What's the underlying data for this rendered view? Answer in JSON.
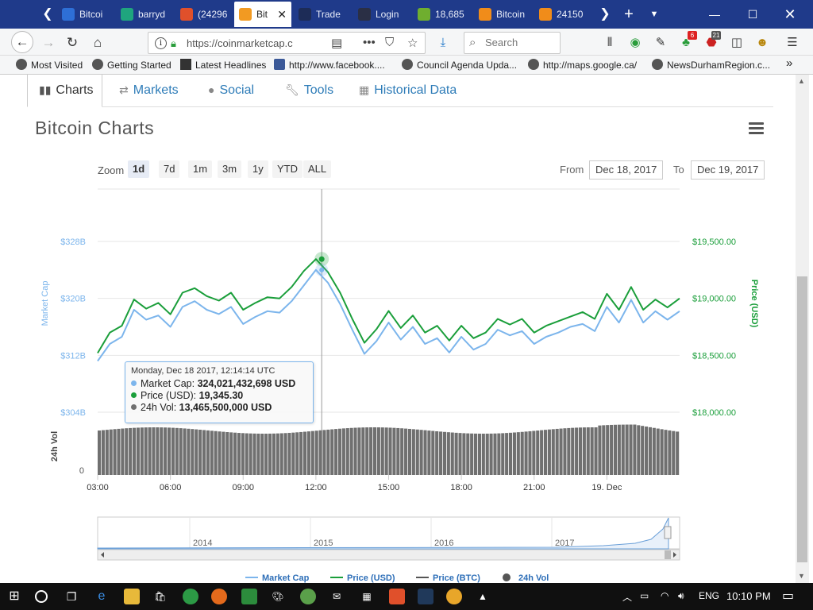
{
  "browser": {
    "tabs": [
      {
        "label": "Bitcoi",
        "icon": "bitcoin-tab-icon",
        "color": "#2e6fd6"
      },
      {
        "label": "barryd",
        "icon": "bookmark-tab-icon",
        "color": "#1fa57e"
      },
      {
        "label": "(24296",
        "icon": "mail-tab-icon",
        "color": "#e0502b"
      },
      {
        "label": "Bit",
        "icon": "bitcoin-tab-icon",
        "color": "#f29a22"
      },
      {
        "label": "Trade",
        "icon": "exchange-tab-icon",
        "color": "#1d2c57"
      },
      {
        "label": "Login",
        "icon": "lock-tab-icon",
        "color": "#2a2f45"
      },
      {
        "label": "18,685",
        "icon": "leaf-tab-icon",
        "color": "#6fae2f"
      },
      {
        "label": "Bitcoin",
        "icon": "chart-tab-icon",
        "color": "#f08c1a"
      },
      {
        "label": "24150",
        "icon": "chart-tab-icon",
        "color": "#f08c1a"
      }
    ],
    "url": "https://coinmarketcap.c",
    "search_placeholder": "Search",
    "badges": {
      "ext1": "6",
      "ext2": "21"
    },
    "bookmarks": [
      "Most Visited",
      "Getting Started",
      "Latest Headlines",
      "http://www.facebook....",
      "Council Agenda Upda...",
      "http://maps.google.ca/",
      "NewsDurhamRegion.c..."
    ]
  },
  "subnav": {
    "charts": "Charts",
    "markets": "Markets",
    "social": "Social",
    "tools": "Tools",
    "historical": "Historical Data"
  },
  "chart_title": "Bitcoin Charts",
  "controls": {
    "zoom_label": "Zoom",
    "zoom_options": [
      "1d",
      "7d",
      "1m",
      "3m",
      "1y",
      "YTD",
      "ALL"
    ],
    "selected": "1d",
    "from_label": "From",
    "from_value": "Dec 18, 2017",
    "to_label": "To",
    "to_value": "Dec 19, 2017"
  },
  "tooltip": {
    "date": "Monday, Dec 18 2017, 12:14:14 UTC",
    "market_cap_label": "Market Cap:",
    "market_cap_value": "324,021,432,698 USD",
    "price_label": "Price (USD):",
    "price_value": "19,345.30",
    "vol_label": "24h Vol:",
    "vol_value": "13,465,500,000 USD"
  },
  "colors": {
    "market_cap": "#7cb5ec",
    "price": "#1a9e3a",
    "volume": "#707070",
    "link": "#2e7cb8"
  },
  "chart_data": {
    "type": "line",
    "x_tick_labels": [
      "03:00",
      "06:00",
      "09:00",
      "12:00",
      "15:00",
      "18:00",
      "21:00",
      "19. Dec"
    ],
    "x_range_hours": [
      3,
      27
    ],
    "left_axis": {
      "label": "Market Cap",
      "ticks": [
        "$328B",
        "$320B",
        "$312B",
        "$304B"
      ],
      "range": [
        304,
        328
      ]
    },
    "right_axis": {
      "label": "Price (USD)",
      "ticks": [
        "$19,500.00",
        "$19,000.00",
        "$18,500.00",
        "$18,000.00"
      ],
      "range": [
        18000,
        19500
      ]
    },
    "volume_axis": {
      "label": "24h Vol",
      "ticks": [
        "0"
      ]
    },
    "series": [
      {
        "name": "Price (USD)",
        "x_hours": [
          3.0,
          3.5,
          4.0,
          4.5,
          5.0,
          5.5,
          6.0,
          6.5,
          7.0,
          7.5,
          8.0,
          8.5,
          9.0,
          9.5,
          10.0,
          10.5,
          11.0,
          11.5,
          12.0,
          12.5,
          13.0,
          13.5,
          14.0,
          14.5,
          15.0,
          15.5,
          16.0,
          16.5,
          17.0,
          17.5,
          18.0,
          18.5,
          19.0,
          19.5,
          20.0,
          20.5,
          21.0,
          21.5,
          22.0,
          22.5,
          23.0,
          23.5,
          24.0,
          24.5,
          25.0,
          25.5,
          26.0,
          26.5,
          27.0
        ],
        "values": [
          18520,
          18700,
          18760,
          18990,
          18910,
          18960,
          18860,
          19050,
          19090,
          19020,
          18980,
          19050,
          18900,
          18960,
          19010,
          19000,
          19100,
          19240,
          19345,
          19230,
          19050,
          18820,
          18610,
          18730,
          18890,
          18740,
          18850,
          18700,
          18760,
          18630,
          18760,
          18650,
          18700,
          18820,
          18770,
          18820,
          18700,
          18760,
          18800,
          18840,
          18880,
          18820,
          19040,
          18900,
          19100,
          18900,
          18990,
          18920,
          19000
        ]
      },
      {
        "name": "Market Cap",
        "x_hours": [
          3.0,
          3.5,
          4.0,
          4.5,
          5.0,
          5.5,
          6.0,
          6.5,
          7.0,
          7.5,
          8.0,
          8.5,
          9.0,
          9.5,
          10.0,
          10.5,
          11.0,
          11.5,
          12.0,
          12.5,
          13.0,
          13.5,
          14.0,
          14.5,
          15.0,
          15.5,
          16.0,
          16.5,
          17.0,
          17.5,
          18.0,
          18.5,
          19.0,
          19.5,
          20.0,
          20.5,
          21.0,
          21.5,
          22.0,
          22.5,
          23.0,
          23.5,
          24.0,
          24.5,
          25.0,
          25.5,
          26.0,
          26.5,
          27.0
        ],
        "values": [
          311.2,
          313.6,
          314.6,
          318.4,
          317.0,
          317.6,
          316.0,
          318.8,
          319.6,
          318.4,
          317.8,
          318.8,
          316.4,
          317.4,
          318.2,
          318.0,
          319.6,
          321.8,
          324.0,
          322.2,
          319.2,
          315.6,
          312.2,
          314.0,
          316.6,
          314.2,
          316.0,
          313.6,
          314.4,
          312.4,
          314.6,
          312.8,
          313.6,
          315.6,
          314.8,
          315.4,
          313.6,
          314.6,
          315.2,
          316.0,
          316.4,
          315.4,
          318.8,
          316.6,
          319.8,
          316.6,
          318.2,
          317.0,
          318.2
        ]
      }
    ],
    "legend": [
      "Market Cap",
      "Price (USD)",
      "Price (BTC)",
      "24h Vol"
    ],
    "legend_position": "bottom",
    "navigator_labels": [
      "2014",
      "2015",
      "2016",
      "2017"
    ]
  },
  "taskbar": {
    "lang": "ENG",
    "time": "10:10 PM"
  }
}
